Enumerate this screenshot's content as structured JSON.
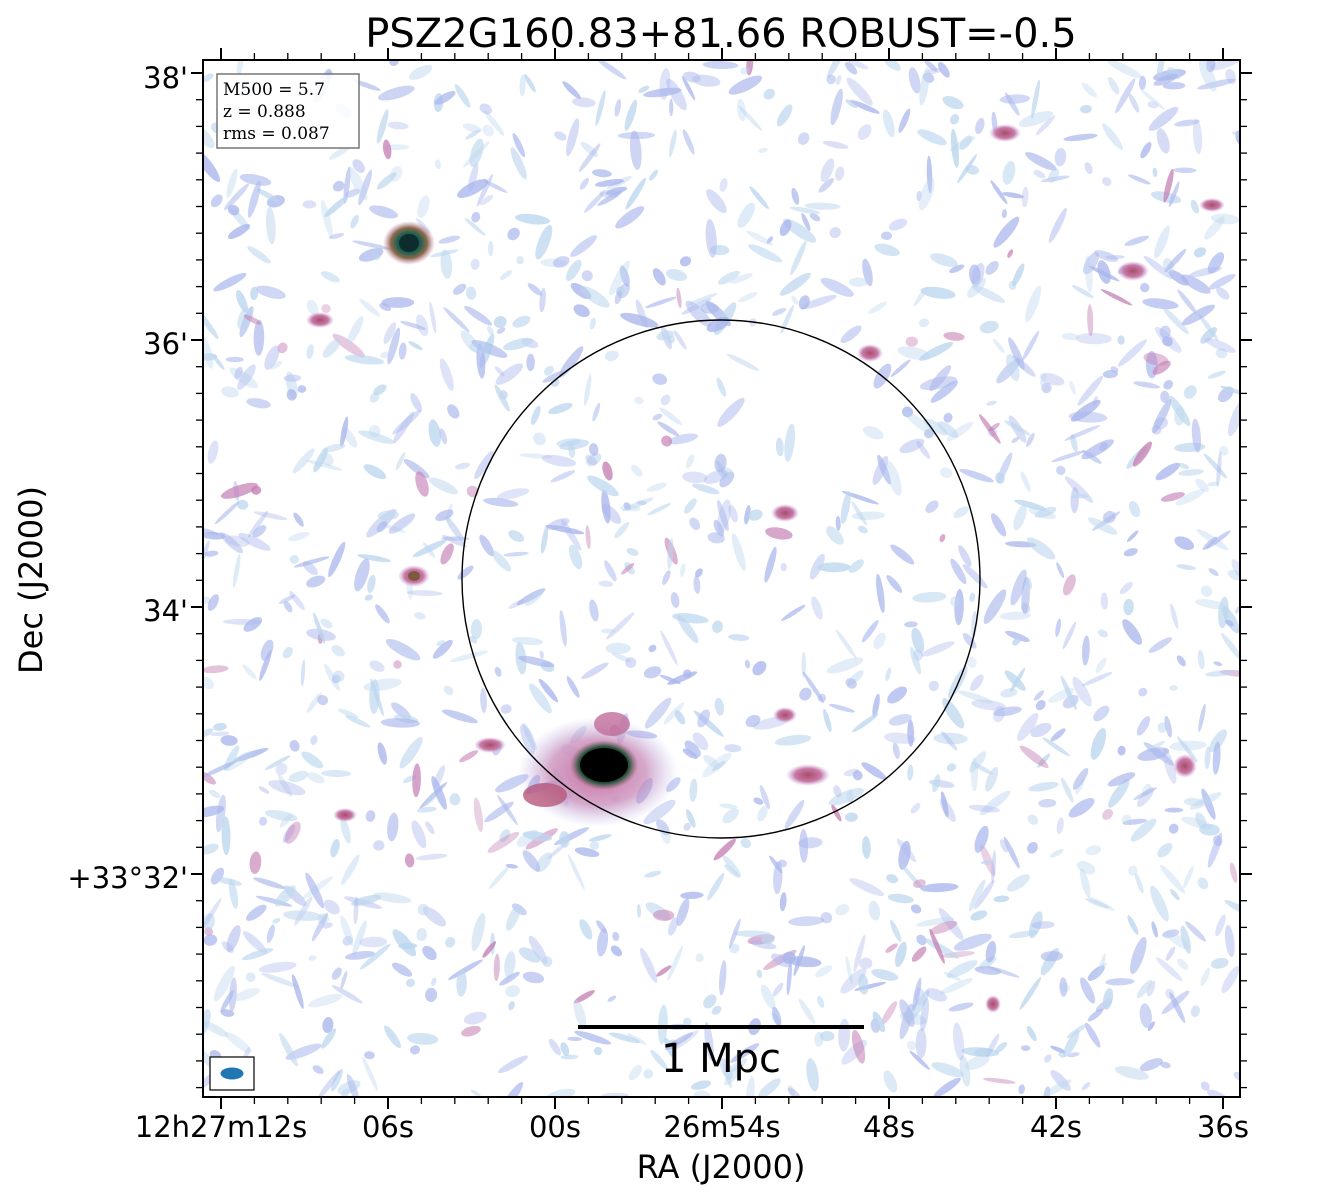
{
  "figure": {
    "title": "PSZ2G160.83+81.66 ROBUST=-0.5",
    "xlabel": "RA (J2000)",
    "ylabel": "Dec (J2000)",
    "x_ticks": [
      "12h27m12s",
      "06s",
      "00s",
      "26m54s",
      "48s",
      "42s",
      "36s"
    ],
    "y_ticks": [
      "38'",
      "36'",
      "34'",
      "+33°32'"
    ],
    "info_box": [
      "M500 = 5.7",
      "z = 0.888",
      "rms = 0.087"
    ],
    "scalebar_label": "1 Mpc"
  },
  "colors": {
    "noise_light": "#bcd6ee",
    "noise_blue": "#a9b6ec",
    "source_pink": "#c47fb4",
    "source_red": "#b05a6a",
    "source_core": "#0d1a18",
    "beam": "#1f77b4",
    "circle": "#000000"
  },
  "icons": {
    "beam": "beam-ellipse-icon"
  }
}
